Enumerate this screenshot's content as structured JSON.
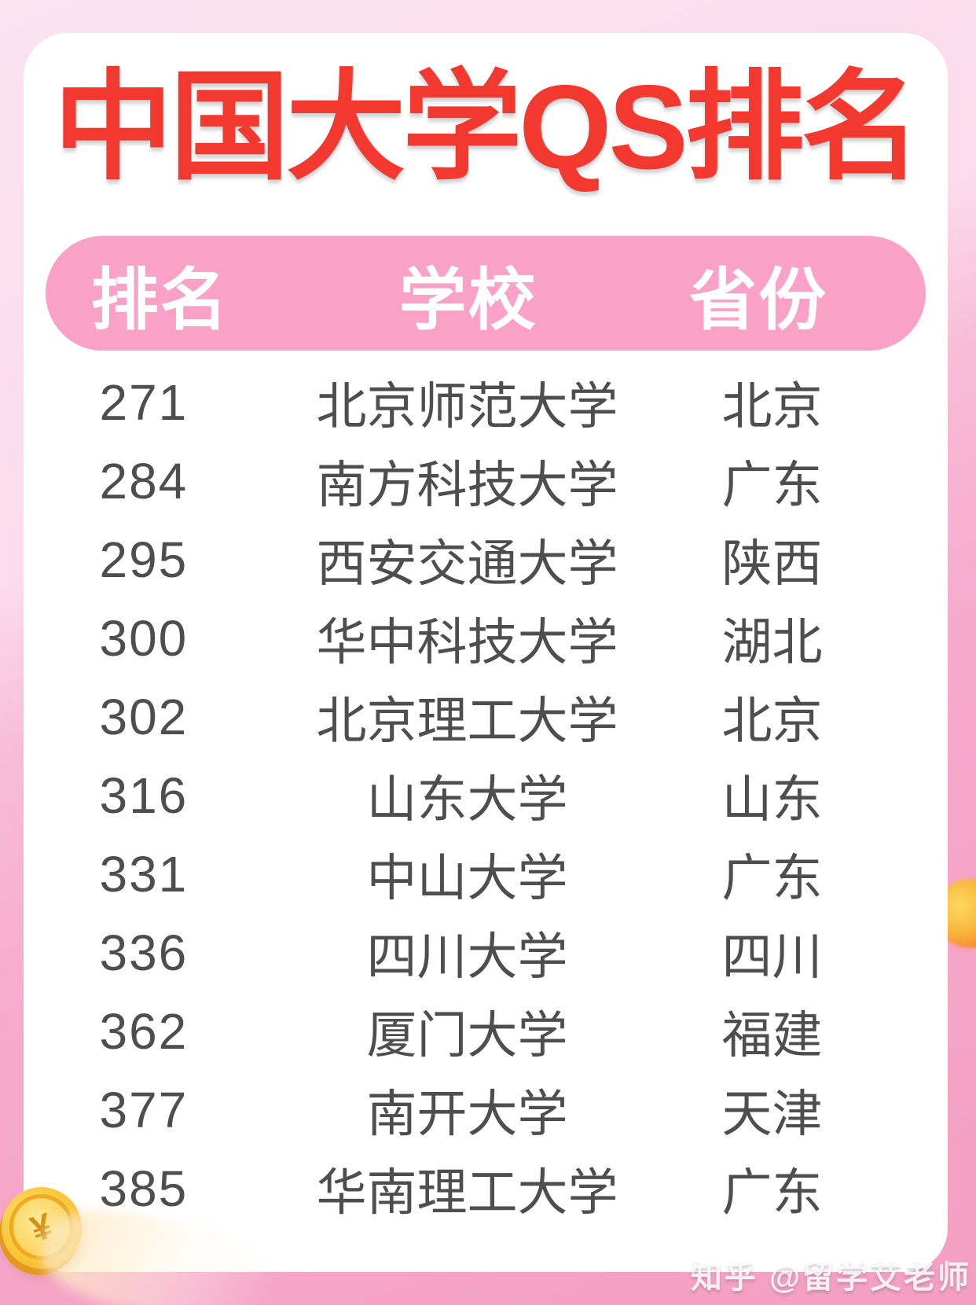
{
  "title": "中国大学QS排名",
  "table": {
    "columns": [
      "排名",
      "学校",
      "省份"
    ],
    "rows": [
      {
        "rank": "271",
        "school": "北京师范大学",
        "province": "北京"
      },
      {
        "rank": "284",
        "school": "南方科技大学",
        "province": "广东"
      },
      {
        "rank": "295",
        "school": "西安交通大学",
        "province": "陕西"
      },
      {
        "rank": "300",
        "school": "华中科技大学",
        "province": "湖北"
      },
      {
        "rank": "302",
        "school": "北京理工大学",
        "province": "北京"
      },
      {
        "rank": "316",
        "school": "山东大学",
        "province": "山东"
      },
      {
        "rank": "331",
        "school": "中山大学",
        "province": "广东"
      },
      {
        "rank": "336",
        "school": "四川大学",
        "province": "四川"
      },
      {
        "rank": "362",
        "school": "厦门大学",
        "province": "福建"
      },
      {
        "rank": "377",
        "school": "南开大学",
        "province": "天津"
      },
      {
        "rank": "385",
        "school": "华南理工大学",
        "province": "广东"
      }
    ]
  },
  "watermark": "知乎 @留学艾老师",
  "icons": {
    "coin_symbol": "¥"
  },
  "colors": {
    "title_red": "#f2382f",
    "header_pill_pink": "#faa1c8",
    "header_text": "#ffffff",
    "row_text": "#4e4e4e",
    "background_light_pink": "#fbdcec",
    "background_deep_pink": "#f49fc2",
    "card_white": "#ffffff",
    "coin_gold": "#f8c639"
  }
}
